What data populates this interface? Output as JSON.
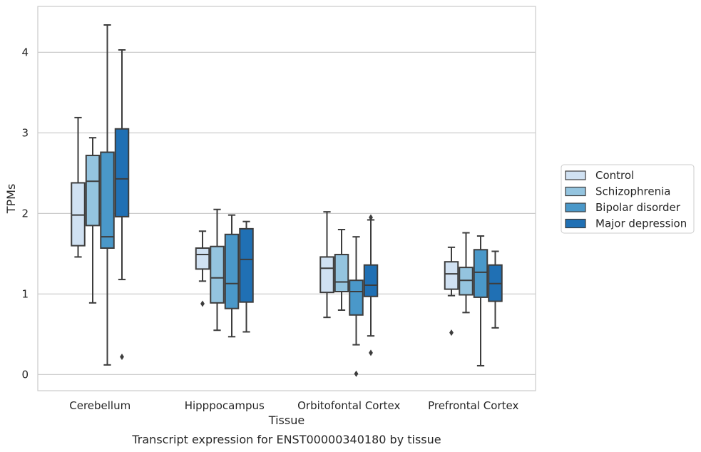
{
  "chart_data": {
    "type": "box",
    "title": "",
    "caption": "Transcript expression for ENST00000340180 by tissue",
    "xlabel": "Tissue",
    "ylabel": "TPMs",
    "ylim": [
      -0.2,
      4.57
    ],
    "yticks": [
      0,
      1,
      2,
      3,
      4
    ],
    "grid": "horizontal",
    "legend_position": "right",
    "categories": [
      "Cerebellum",
      "Hipppocampus",
      "Orbitofontal Cortex",
      "Prefrontal Cortex"
    ],
    "series": [
      {
        "name": "Control",
        "color": "#d0e1f2",
        "boxes": [
          {
            "whisker_low": 1.46,
            "q1": 1.6,
            "median": 1.98,
            "q3": 2.38,
            "whisker_high": 3.19,
            "outliers": []
          },
          {
            "whisker_low": 1.16,
            "q1": 1.31,
            "median": 1.49,
            "q3": 1.57,
            "whisker_high": 1.78,
            "outliers": [
              0.88
            ]
          },
          {
            "whisker_low": 0.71,
            "q1": 1.02,
            "median": 1.32,
            "q3": 1.46,
            "whisker_high": 2.02,
            "outliers": []
          },
          {
            "whisker_low": 0.98,
            "q1": 1.06,
            "median": 1.25,
            "q3": 1.4,
            "whisker_high": 1.58,
            "outliers": [
              0.52
            ]
          }
        ]
      },
      {
        "name": "Schizophrenia",
        "color": "#94c4df",
        "boxes": [
          {
            "whisker_low": 0.89,
            "q1": 1.85,
            "median": 2.4,
            "q3": 2.72,
            "whisker_high": 2.94,
            "outliers": []
          },
          {
            "whisker_low": 0.55,
            "q1": 0.89,
            "median": 1.2,
            "q3": 1.59,
            "whisker_high": 2.05,
            "outliers": []
          },
          {
            "whisker_low": 0.8,
            "q1": 1.03,
            "median": 1.15,
            "q3": 1.49,
            "whisker_high": 1.8,
            "outliers": []
          },
          {
            "whisker_low": 0.77,
            "q1": 0.99,
            "median": 1.17,
            "q3": 1.33,
            "whisker_high": 1.76,
            "outliers": []
          }
        ]
      },
      {
        "name": "Bipolar disorder",
        "color": "#4a98c9",
        "boxes": [
          {
            "whisker_low": 0.12,
            "q1": 1.57,
            "median": 1.71,
            "q3": 2.76,
            "whisker_high": 4.34,
            "outliers": []
          },
          {
            "whisker_low": 0.47,
            "q1": 0.82,
            "median": 1.13,
            "q3": 1.74,
            "whisker_high": 1.98,
            "outliers": []
          },
          {
            "whisker_low": 0.37,
            "q1": 0.74,
            "median": 1.03,
            "q3": 1.17,
            "whisker_high": 1.71,
            "outliers": [
              0.01
            ]
          },
          {
            "whisker_low": 0.11,
            "q1": 0.96,
            "median": 1.27,
            "q3": 1.55,
            "whisker_high": 1.72,
            "outliers": []
          }
        ]
      },
      {
        "name": "Major depression",
        "color": "#2070b4",
        "boxes": [
          {
            "whisker_low": 1.18,
            "q1": 1.96,
            "median": 2.43,
            "q3": 3.05,
            "whisker_high": 4.03,
            "outliers": [
              0.22
            ]
          },
          {
            "whisker_low": 0.53,
            "q1": 0.9,
            "median": 1.43,
            "q3": 1.81,
            "whisker_high": 1.9,
            "outliers": []
          },
          {
            "whisker_low": 0.48,
            "q1": 0.97,
            "median": 1.11,
            "q3": 1.36,
            "whisker_high": 1.92,
            "outliers": [
              0.27,
              1.95
            ]
          },
          {
            "whisker_low": 0.58,
            "q1": 0.91,
            "median": 1.13,
            "q3": 1.36,
            "whisker_high": 1.53,
            "outliers": []
          }
        ]
      }
    ]
  }
}
